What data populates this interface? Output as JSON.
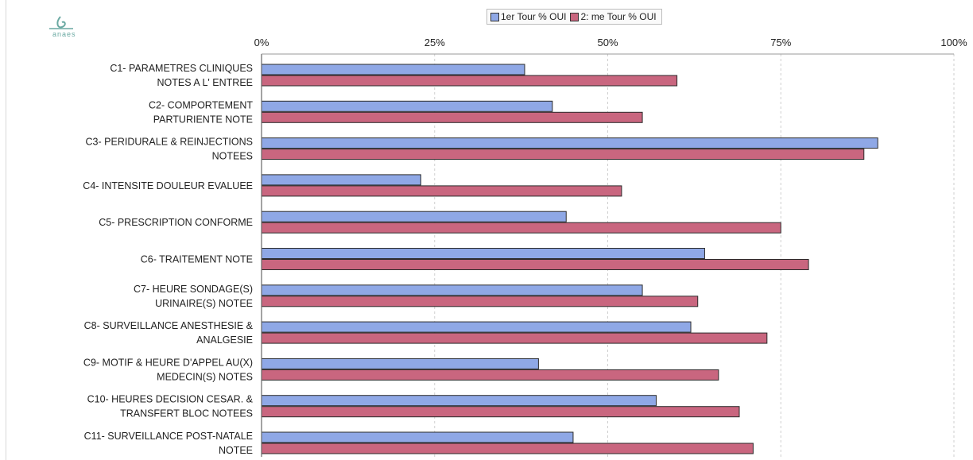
{
  "logo": {
    "name": "anaes-logo",
    "text": "anaes"
  },
  "colors": {
    "series1": "#8fa8e6",
    "series2": "#c9667f",
    "grid": "#cfcfcf",
    "axis": "#666666"
  },
  "chart_data": {
    "type": "bar",
    "orientation": "horizontal",
    "categories": [
      [
        "C1- PARAMETRES CLINIQUES",
        "NOTES A L' ENTREE"
      ],
      [
        "C2- COMPORTEMENT",
        "PARTURIENTE NOTE"
      ],
      [
        "C3- PERIDURALE & REINJECTIONS",
        "NOTEES"
      ],
      [
        "C4- INTENSITE DOULEUR EVALUEE"
      ],
      [
        "C5- PRESCRIPTION CONFORME"
      ],
      [
        "C6- TRAITEMENT NOTE"
      ],
      [
        "C7- HEURE SONDAGE(S)",
        "URINAIRE(S) NOTEE"
      ],
      [
        "C8- SURVEILLANCE ANESTHESIE &",
        "ANALGESIE"
      ],
      [
        "C9- MOTIF & HEURE D'APPEL AU(X)",
        "MEDECIN(S) NOTES"
      ],
      [
        "C10- HEURES DECISION CESAR. &",
        "TRANSFERT BLOC NOTEES"
      ],
      [
        "C11- SURVEILLANCE POST-NATALE",
        "NOTEE"
      ]
    ],
    "series": [
      {
        "name": "1er Tour % OUI",
        "values": [
          38,
          42,
          89,
          23,
          44,
          64,
          55,
          62,
          40,
          57,
          45
        ]
      },
      {
        "name": "2ème Tour % OUI",
        "values": [
          60,
          55,
          87,
          52,
          75,
          79,
          63,
          73,
          66,
          69,
          71
        ]
      }
    ],
    "legend_labels": [
      "1er Tour % OUI",
      "2: me Tour % OUI"
    ],
    "xlim": [
      0,
      100
    ],
    "xticks": [
      "0%",
      "25%",
      "50%",
      "75%",
      "100%"
    ],
    "xtick_values": [
      0,
      25,
      50,
      75,
      100
    ],
    "axis_position": "top",
    "legend": "top-center",
    "grid": "vertical-dashed"
  }
}
